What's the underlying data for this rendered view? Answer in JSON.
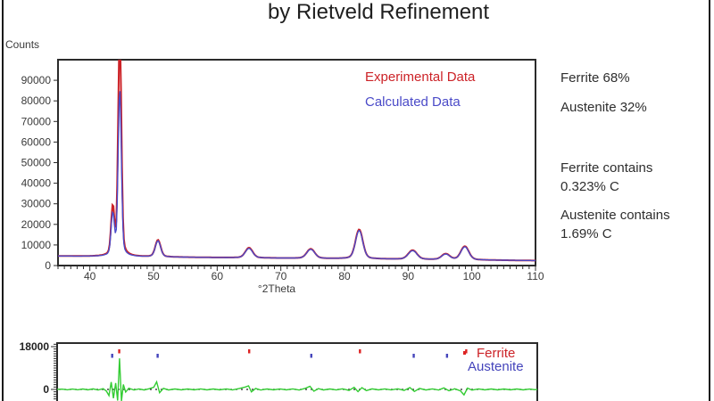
{
  "slide": {
    "title": "by Rietveld Refinement"
  },
  "right_panel": {
    "items": [
      {
        "text": "Ferrite 68%"
      },
      {
        "text": "Austenite 32%"
      },
      {
        "text": "Ferrite contains"
      },
      {
        "text": "0.323% C"
      },
      {
        "text": "Austenite contains"
      },
      {
        "text": "1.69% C"
      }
    ]
  },
  "colors": {
    "experimental": "#cc2227",
    "calculated": "#4a4ac8",
    "difference": "#33cc33",
    "ferrite_marker": "#dd2222",
    "austenite_marker": "#4444bb",
    "axis": "#2b2b2b",
    "tick_text": "#3a3a3a"
  },
  "chart_data": [
    {
      "id": "main-pattern",
      "type": "line",
      "title": "by Rietveld Refinement",
      "ylabel": "Counts",
      "xlabel": "°2Theta",
      "xlim": [
        35,
        110
      ],
      "ylim": [
        0,
        100000
      ],
      "x_ticks": [
        40,
        50,
        60,
        70,
        80,
        90,
        100,
        110
      ],
      "x_minor_step": 1,
      "y_ticks": [
        0,
        10000,
        20000,
        30000,
        40000,
        50000,
        60000,
        70000,
        80000,
        90000
      ],
      "legend_position": "top-center-inside",
      "grid": false,
      "legend": [
        {
          "label": "Experimental Data",
          "color": "#cc2227"
        },
        {
          "label": "Calculated Data",
          "color": "#4a4ac8"
        }
      ],
      "baseline": {
        "start": 4600,
        "end": 2400
      },
      "series": [
        {
          "name": "Experimental Data",
          "color": "#cc2227",
          "peaks": [
            [
              43.6,
              23000,
              0.25
            ],
            [
              44.7,
              110000,
              0.24
            ],
            [
              50.7,
              8200,
              0.4
            ],
            [
              65.0,
              4900,
              0.55
            ],
            [
              74.7,
              4600,
              0.6
            ],
            [
              82.3,
              14300,
              0.55
            ],
            [
              90.7,
              4400,
              0.65
            ],
            [
              95.9,
              2800,
              0.6
            ],
            [
              98.9,
              6600,
              0.6
            ]
          ]
        },
        {
          "name": "Calculated Data",
          "color": "#4a4ac8",
          "peaks": [
            [
              43.6,
              20000,
              0.25
            ],
            [
              44.7,
              81500,
              0.24
            ],
            [
              50.7,
              7800,
              0.4
            ],
            [
              65.0,
              4600,
              0.55
            ],
            [
              74.7,
              4400,
              0.6
            ],
            [
              82.3,
              13800,
              0.55
            ],
            [
              90.7,
              4200,
              0.65
            ],
            [
              95.9,
              2600,
              0.6
            ],
            [
              98.9,
              6300,
              0.6
            ]
          ]
        }
      ]
    },
    {
      "id": "difference-plot",
      "type": "line",
      "xlim": [
        35,
        110
      ],
      "ylim": [
        -4900,
        19500
      ],
      "y_labeled_ticks": [
        18000,
        0
      ],
      "y_minor_step": 1000,
      "legend": [
        {
          "label": "Ferrite",
          "color": "#cc2227"
        },
        {
          "label": "Austenite",
          "color": "#4444bb"
        }
      ],
      "phase_markers": [
        {
          "name": "Ferrite",
          "color": "#dd2222",
          "positions": [
            44.7,
            65.0,
            82.3,
            98.9
          ]
        },
        {
          "name": "Austenite",
          "color": "#4444bb",
          "positions": [
            43.6,
            50.7,
            74.7,
            90.7,
            95.9
          ]
        }
      ],
      "difference_curve": {
        "color": "#33cc33",
        "points": [
          [
            35,
            50
          ],
          [
            35.8,
            120
          ],
          [
            36.6,
            -140
          ],
          [
            37.4,
            140
          ],
          [
            38.2,
            -160
          ],
          [
            39,
            180
          ],
          [
            39.8,
            -200
          ],
          [
            40.6,
            220
          ],
          [
            41.4,
            -260
          ],
          [
            42.2,
            350
          ],
          [
            42.7,
            -700
          ],
          [
            43.1,
            -2600
          ],
          [
            43.45,
            3100
          ],
          [
            43.8,
            -3700
          ],
          [
            44.15,
            2700
          ],
          [
            44.45,
            -4700
          ],
          [
            44.75,
            13100
          ],
          [
            45.05,
            -4900
          ],
          [
            45.35,
            2100
          ],
          [
            45.7,
            -1100
          ],
          [
            46.2,
            500
          ],
          [
            47,
            -280
          ],
          [
            47.8,
            200
          ],
          [
            48.6,
            -240
          ],
          [
            49.4,
            300
          ],
          [
            50.1,
            900
          ],
          [
            50.55,
            3200
          ],
          [
            51,
            -1400
          ],
          [
            51.6,
            450
          ],
          [
            52.4,
            -240
          ],
          [
            53.4,
            190
          ],
          [
            54.4,
            -180
          ],
          [
            55.4,
            200
          ],
          [
            56.4,
            -190
          ],
          [
            57.4,
            210
          ],
          [
            58.4,
            -190
          ],
          [
            59.4,
            200
          ],
          [
            60.4,
            -200
          ],
          [
            61.4,
            220
          ],
          [
            62.4,
            -240
          ],
          [
            63.4,
            350
          ],
          [
            64.4,
            1000
          ],
          [
            64.9,
            1500
          ],
          [
            65.35,
            -1050
          ],
          [
            66,
            420
          ],
          [
            66.8,
            -260
          ],
          [
            67.8,
            200
          ],
          [
            68.8,
            -190
          ],
          [
            69.8,
            210
          ],
          [
            70.8,
            -200
          ],
          [
            71.8,
            230
          ],
          [
            72.8,
            -280
          ],
          [
            73.8,
            500
          ],
          [
            74.5,
            1300
          ],
          [
            75.1,
            -750
          ],
          [
            75.8,
            350
          ],
          [
            76.6,
            -240
          ],
          [
            77.6,
            200
          ],
          [
            78.6,
            -220
          ],
          [
            79.6,
            260
          ],
          [
            80.6,
            -420
          ],
          [
            81.4,
            850
          ],
          [
            82,
            -950
          ],
          [
            82.6,
            750
          ],
          [
            83.3,
            -480
          ],
          [
            84.2,
            240
          ],
          [
            85.2,
            -200
          ],
          [
            86.2,
            220
          ],
          [
            87.2,
            -220
          ],
          [
            88.2,
            280
          ],
          [
            89.2,
            -420
          ],
          [
            90.1,
            750
          ],
          [
            90.8,
            -850
          ],
          [
            91.6,
            400
          ],
          [
            92.6,
            -240
          ],
          [
            93.6,
            230
          ],
          [
            94.6,
            -260
          ],
          [
            95.4,
            650
          ],
          [
            96.2,
            -550
          ],
          [
            97.1,
            280
          ],
          [
            98,
            -600
          ],
          [
            98.55,
            -2300
          ],
          [
            99.1,
            550
          ],
          [
            99.8,
            -300
          ],
          [
            100.8,
            220
          ],
          [
            101.8,
            -200
          ],
          [
            102.8,
            200
          ],
          [
            103.8,
            -190
          ],
          [
            104.8,
            190
          ],
          [
            105.8,
            -190
          ],
          [
            106.8,
            180
          ],
          [
            107.8,
            -170
          ],
          [
            108.8,
            160
          ],
          [
            109.6,
            -120
          ],
          [
            110,
            40
          ]
        ]
      }
    }
  ]
}
